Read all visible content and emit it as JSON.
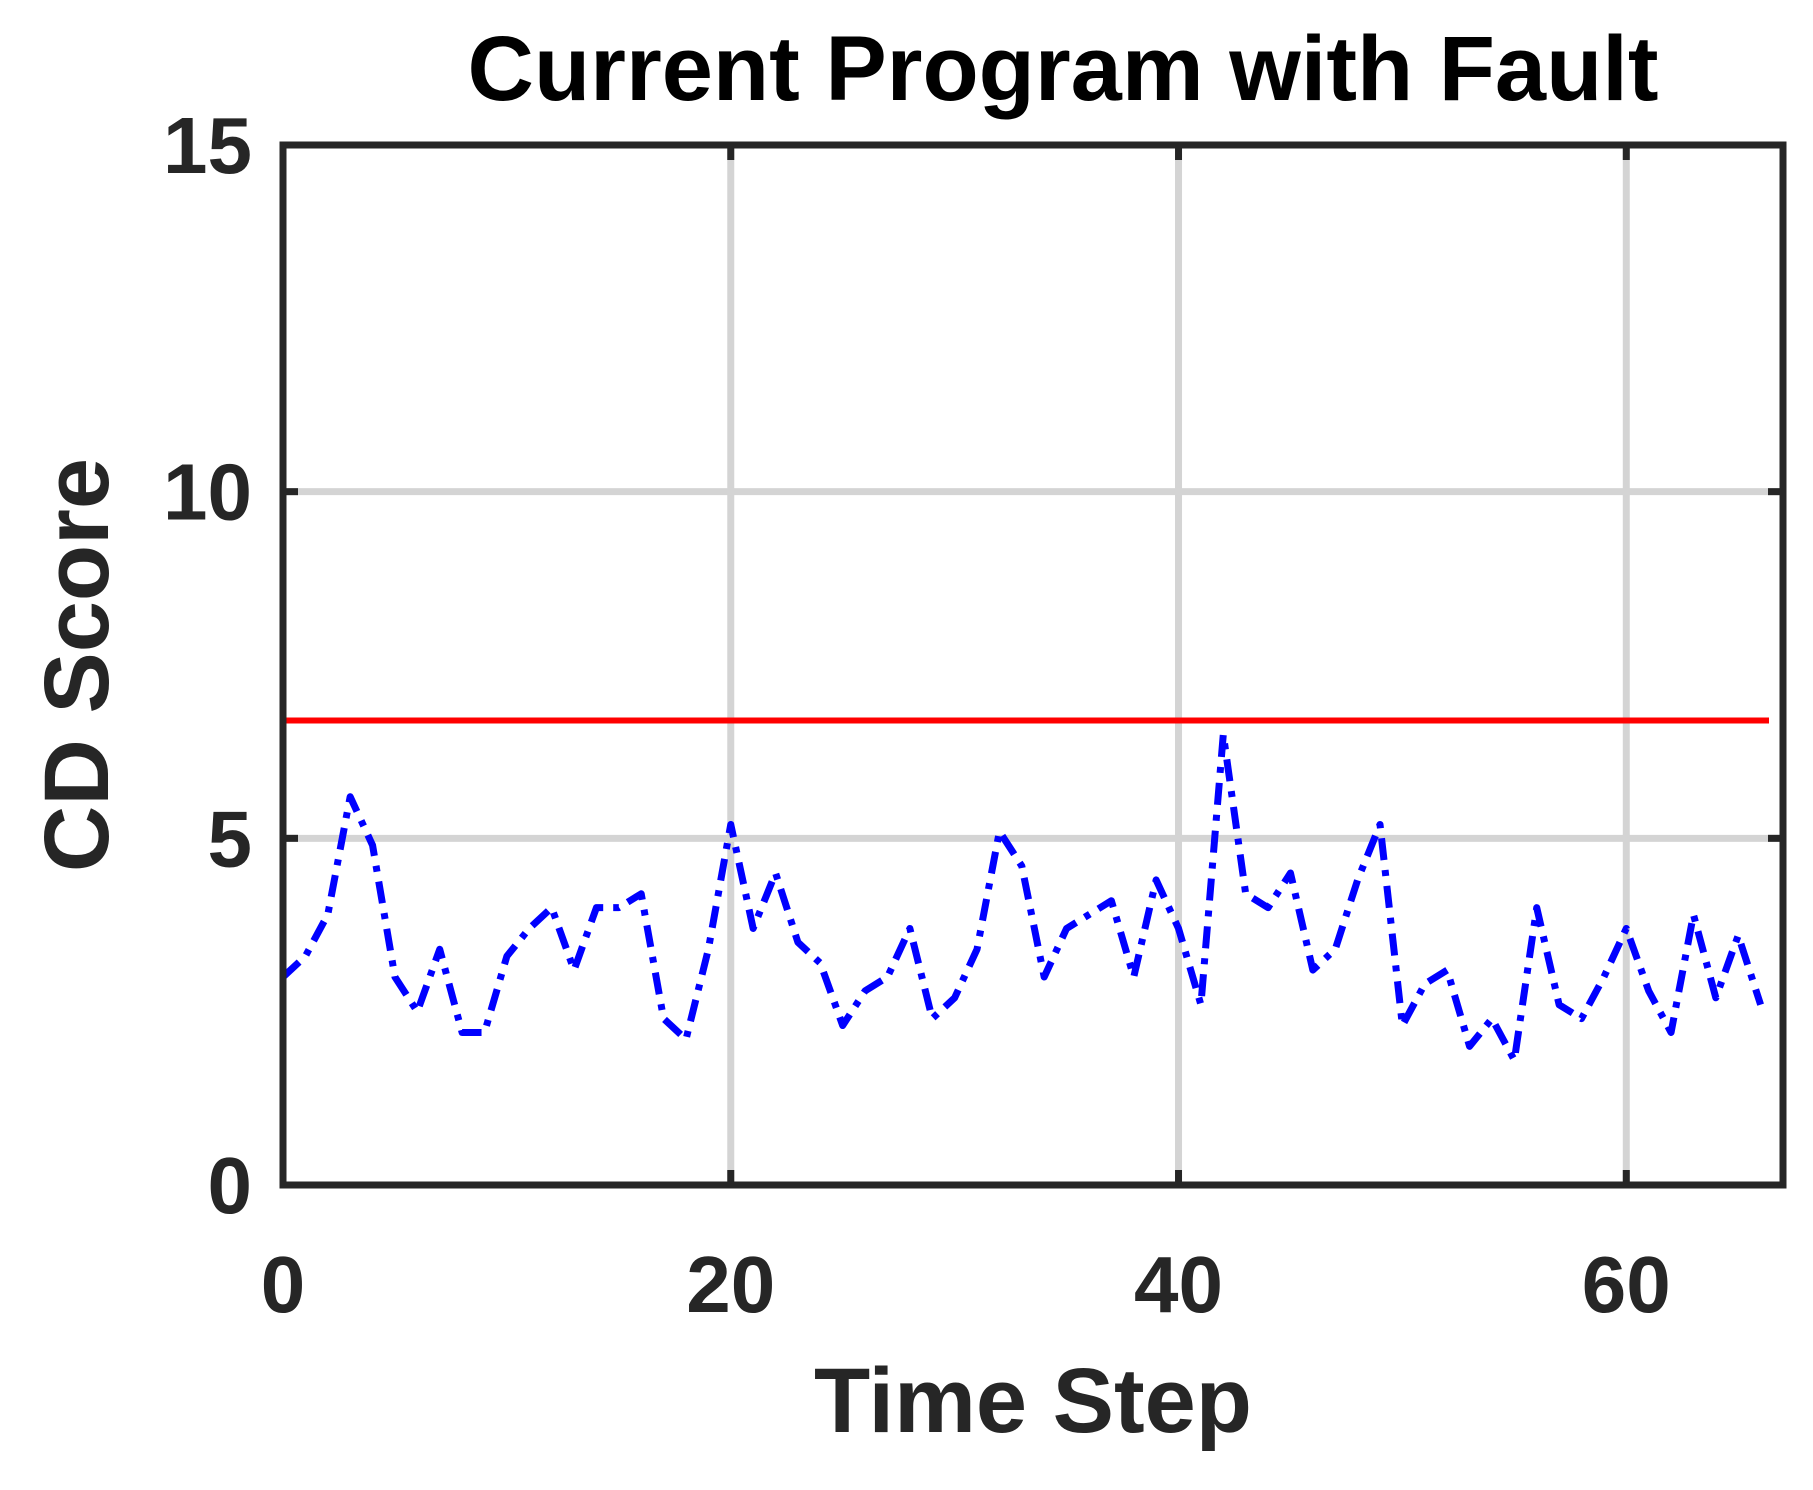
{
  "chart_data": {
    "type": "line",
    "title": "Current Program with Fault",
    "xlabel": "Time Step",
    "ylabel": "CD Score",
    "xlim": [
      0,
      67
    ],
    "ylim": [
      0,
      15
    ],
    "x_ticks": [
      0,
      20,
      40,
      60
    ],
    "y_ticks": [
      0,
      5,
      10,
      15
    ],
    "grid": true,
    "threshold": {
      "value": 6.7,
      "color": "#ff0000",
      "style": "solid"
    },
    "series": [
      {
        "color": "#0000ff",
        "style": "dash-dot",
        "x": [
          0,
          1,
          2,
          3,
          4,
          5,
          6,
          7,
          8,
          9,
          10,
          11,
          12,
          13,
          14,
          15,
          16,
          17,
          18,
          19,
          20,
          21,
          22,
          23,
          24,
          25,
          26,
          27,
          28,
          29,
          30,
          31,
          32,
          33,
          34,
          35,
          36,
          37,
          38,
          39,
          40,
          41,
          42,
          43,
          44,
          45,
          46,
          47,
          48,
          49,
          50,
          51,
          52,
          53,
          54,
          55,
          56,
          57,
          58,
          59,
          60,
          61,
          62,
          63,
          64,
          65,
          66
        ],
        "values": [
          3.0,
          3.3,
          3.9,
          5.6,
          4.9,
          3.0,
          2.5,
          3.4,
          2.2,
          2.2,
          3.3,
          3.7,
          4.0,
          3.1,
          4.0,
          4.0,
          4.2,
          2.4,
          2.1,
          3.4,
          5.2,
          3.7,
          4.5,
          3.5,
          3.2,
          2.3,
          2.8,
          3.0,
          3.7,
          2.4,
          2.7,
          3.4,
          5.1,
          4.6,
          3.0,
          3.7,
          3.9,
          4.1,
          3.0,
          4.4,
          3.7,
          2.6,
          6.5,
          4.2,
          4.0,
          4.5,
          3.1,
          3.4,
          4.4,
          5.2,
          2.3,
          2.9,
          3.1,
          2.0,
          2.4,
          1.8,
          4.0,
          2.6,
          2.4,
          3.0,
          3.7,
          2.8,
          2.2,
          3.9,
          2.7,
          3.6,
          2.6
        ]
      }
    ]
  }
}
